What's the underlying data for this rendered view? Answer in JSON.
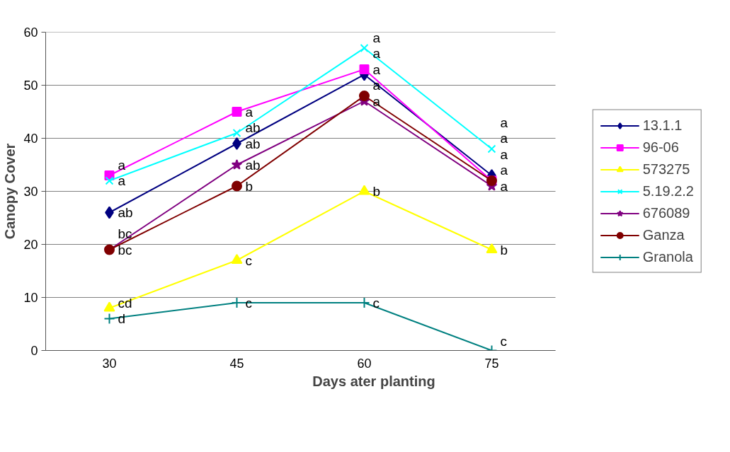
{
  "chart_data": {
    "type": "line",
    "xlabel": "Days ater planting",
    "ylabel": "Canopy Cover",
    "categories": [
      "30",
      "45",
      "60",
      "75"
    ],
    "series": [
      {
        "name": "13.1.1",
        "color": "#000080",
        "marker": "diamond",
        "values": [
          26,
          39,
          52,
          33
        ],
        "value_labels": [
          "ab",
          "ab",
          "a",
          "a"
        ]
      },
      {
        "name": "96-06",
        "color": "#ff00ff",
        "marker": "square",
        "values": [
          33,
          45,
          53,
          32
        ],
        "value_labels": [
          "a",
          "a",
          "a",
          "a"
        ]
      },
      {
        "name": "573275",
        "color": "#ffff00",
        "marker": "triangle",
        "values": [
          8,
          17,
          30,
          19
        ],
        "value_labels": [
          "cd",
          "c",
          "b",
          "b"
        ]
      },
      {
        "name": "5.19.2.2",
        "color": "#00ffff",
        "marker": "x",
        "values": [
          32,
          41,
          57,
          38
        ],
        "value_labels": [
          "a",
          "ab",
          "a",
          "a"
        ]
      },
      {
        "name": "676089",
        "color": "#800080",
        "marker": "star",
        "values": [
          19,
          35,
          47,
          31
        ],
        "value_labels": [
          "bc",
          "ab",
          "a",
          "a"
        ]
      },
      {
        "name": "Ganza",
        "color": "#800000",
        "marker": "circle",
        "values": [
          19,
          31,
          48,
          32
        ],
        "value_labels": [
          "bc",
          "b",
          "a",
          "a"
        ]
      },
      {
        "name": "Granola",
        "color": "#008080",
        "marker": "cross",
        "values": [
          6,
          9,
          9,
          0
        ],
        "value_labels": [
          "d",
          "c",
          "c",
          "c"
        ]
      }
    ],
    "ylim": [
      0,
      60
    ],
    "yticks": [
      0,
      10,
      20,
      30,
      40,
      50,
      60
    ],
    "grid": "y",
    "legend": "right",
    "line_style": "solid"
  }
}
